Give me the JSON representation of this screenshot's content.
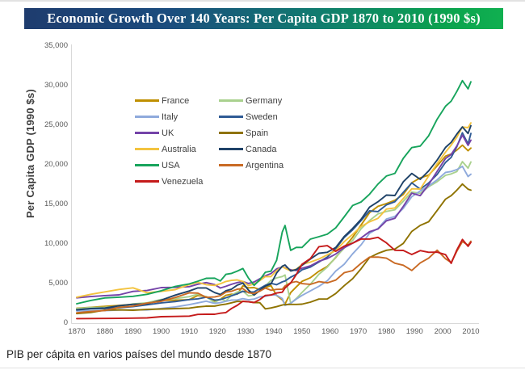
{
  "header": {
    "title": "Economic Growth Over 140 Years: Per Capita GDP 1870 to 2010 (1990 $s)",
    "bg_gradient_left": "#1E3C6E",
    "bg_gradient_right": "#0BA24E",
    "text_color": "#FFFFFF"
  },
  "caption": {
    "text": "PIB per cápita en varios países del mundo desde 1870"
  },
  "chart_data": {
    "type": "line",
    "title": "Economic Growth Over 140 Years: Per Capita GDP 1870 to 2010 (1990 $s)",
    "xlabel": "",
    "ylabel": "Per Capita GDP (1990 $s)",
    "xlim": [
      1870,
      2010
    ],
    "ylim": [
      0,
      35000
    ],
    "grid": false,
    "legend_position": "upper-left, two columns",
    "x_ticks": [
      1870,
      1880,
      1890,
      1900,
      1910,
      1920,
      1930,
      1940,
      1950,
      1960,
      1970,
      1980,
      1990,
      2000,
      2010
    ],
    "y_ticks": [
      {
        "value": 0,
        "label": "0"
      },
      {
        "value": 5000,
        "label": "5,000"
      },
      {
        "value": 10000,
        "label": "10,000"
      },
      {
        "value": 15000,
        "label": "15,000"
      },
      {
        "value": 20000,
        "label": "20,000"
      },
      {
        "value": 25000,
        "label": "25,000"
      },
      {
        "value": 30000,
        "label": "30,000"
      },
      {
        "value": 35000,
        "label": "35,000"
      }
    ],
    "x": [
      1870,
      1875,
      1880,
      1885,
      1890,
      1895,
      1900,
      1905,
      1910,
      1913,
      1916,
      1919,
      1921,
      1923,
      1925,
      1927,
      1929,
      1931,
      1933,
      1935,
      1937,
      1939,
      1941,
      1943,
      1944,
      1946,
      1948,
      1950,
      1953,
      1956,
      1959,
      1962,
      1965,
      1968,
      1971,
      1974,
      1977,
      1980,
      1983,
      1986,
      1989,
      1992,
      1995,
      1998,
      2001,
      2003,
      2005,
      2007,
      2009,
      2010
    ],
    "series": [
      {
        "name": "France",
        "color": "#BF8F00",
        "values": [
          1876,
          1992,
          2120,
          2239,
          2376,
          2498,
          2876,
          2894,
          2965,
          3485,
          3361,
          2811,
          3023,
          3525,
          3653,
          3649,
          4710,
          4455,
          4492,
          4244,
          4487,
          4748,
          3493,
          2953,
          2422,
          3855,
          4580,
          5271,
          5733,
          6555,
          7160,
          8287,
          9577,
          10843,
          12413,
          13954,
          14755,
          15106,
          15525,
          16252,
          17730,
          18350,
          18697,
          19856,
          21092,
          21372,
          21861,
          22480,
          21775,
          22114
        ]
      },
      {
        "name": "Germany",
        "color": "#A9D18E",
        "values": [
          1839,
          1973,
          1991,
          2112,
          2428,
          2571,
          2985,
          3104,
          3348,
          3648,
          3331,
          2586,
          3069,
          2797,
          3532,
          3941,
          4051,
          3441,
          3556,
          4120,
          4685,
          5406,
          5711,
          5890,
          6084,
          2503,
          3113,
          3881,
          4928,
          6177,
          7078,
          8343,
          9467,
          10440,
          11933,
          12957,
          13810,
          14114,
          14318,
          15383,
          16558,
          16397,
          17228,
          17871,
          18677,
          18849,
          19144,
          20395,
          19580,
          20360
        ]
      },
      {
        "name": "Italy",
        "color": "#8FAADC",
        "values": [
          1542,
          1589,
          1581,
          1650,
          1690,
          1668,
          1855,
          2050,
          2332,
          2564,
          2774,
          2493,
          2587,
          2759,
          2921,
          2933,
          3093,
          2947,
          3041,
          3316,
          3392,
          3593,
          3529,
          3103,
          2232,
          2506,
          3043,
          3502,
          4068,
          4658,
          5350,
          6577,
          7434,
          8752,
          9900,
          11346,
          11967,
          13149,
          13475,
          14504,
          15969,
          16697,
          17327,
          18107,
          19040,
          19150,
          19402,
          19804,
          18520,
          18813
        ]
      },
      {
        "name": "Sweden",
        "color": "#2F5B95",
        "values": [
          1662,
          1830,
          1846,
          1946,
          2086,
          2318,
          2561,
          2721,
          2980,
          3073,
          3280,
          2914,
          2966,
          3209,
          3461,
          3699,
          4021,
          3899,
          3944,
          4375,
          4779,
          5029,
          4856,
          5214,
          5327,
          5807,
          6176,
          6739,
          7082,
          7720,
          8346,
          9400,
          10815,
          11784,
          12963,
          14183,
          14088,
          14937,
          15334,
          16516,
          17710,
          16927,
          17700,
          18772,
          20306,
          20937,
          22290,
          24041,
          22630,
          23963
        ]
      },
      {
        "name": "UK",
        "color": "#7443A8",
        "values": [
          3190,
          3357,
          3477,
          3574,
          4009,
          4118,
          4492,
          4520,
          4611,
          4921,
          5123,
          4870,
          4439,
          4657,
          4910,
          5125,
          5255,
          5010,
          5195,
          5599,
          5983,
          6262,
          6856,
          7103,
          6986,
          6745,
          6651,
          6939,
          7239,
          7812,
          8155,
          8730,
          9531,
          10106,
          10768,
          11552,
          11890,
          12931,
          13240,
          14742,
          16414,
          16100,
          17495,
          19177,
          20795,
          21310,
          22374,
          23742,
          22455,
          23113
        ]
      },
      {
        "name": "Spain",
        "color": "#8F7300",
        "values": [
          1207,
          1346,
          1646,
          1688,
          1624,
          1730,
          1786,
          1836,
          1895,
          2056,
          2142,
          2157,
          2306,
          2406,
          2573,
          2747,
          2739,
          2713,
          2606,
          2583,
          1808,
          1915,
          2083,
          2282,
          2345,
          2363,
          2372,
          2397,
          2653,
          3042,
          3050,
          3746,
          4722,
          5609,
          6882,
          8283,
          8812,
          9203,
          9358,
          10075,
          11582,
          12351,
          12807,
          14227,
          15659,
          16100,
          16794,
          17570,
          16921,
          16797
        ]
      },
      {
        "name": "Australia",
        "color": "#F3C33F",
        "values": [
          3273,
          3644,
          3944,
          4257,
          4458,
          3850,
          4013,
          4234,
          4875,
          5157,
          4861,
          4766,
          4982,
          5262,
          5395,
          5456,
          5263,
          4743,
          4938,
          5367,
          5886,
          5877,
          6644,
          7132,
          6925,
          6615,
          6817,
          7412,
          7712,
          8107,
          8623,
          9175,
          10290,
          11217,
          12210,
          12798,
          13231,
          14412,
          14555,
          15746,
          16968,
          16935,
          18581,
          20142,
          21605,
          22488,
          23486,
          24776,
          24698,
          25301
        ]
      },
      {
        "name": "Canada",
        "color": "#1F4268",
        "values": [
          1695,
          1851,
          1911,
          2198,
          2378,
          2437,
          2911,
          3539,
          4066,
          4447,
          4444,
          3854,
          3618,
          4091,
          4301,
          4797,
          5065,
          4174,
          3565,
          4127,
          4683,
          4948,
          6334,
          7194,
          7346,
          6596,
          6765,
          7291,
          8099,
          8823,
          8950,
          9566,
          10934,
          11959,
          13127,
          14653,
          15333,
          16176,
          16122,
          17842,
          18906,
          18160,
          19228,
          20588,
          22198,
          22836,
          23875,
          24789,
          23958,
          24941
        ]
      },
      {
        "name": "USA",
        "color": "#17A45C",
        "values": [
          2445,
          2865,
          3184,
          3274,
          3392,
          3644,
          4091,
          4642,
          4964,
          5301,
          5659,
          5680,
          5323,
          6164,
          6282,
          6576,
          6899,
          5691,
          4777,
          5467,
          6430,
          6561,
          7940,
          11518,
          12333,
          9197,
          9573,
          9561,
          10613,
          10914,
          11230,
          12038,
          13419,
          14862,
          15304,
          16284,
          17567,
          18577,
          18920,
          20821,
          22169,
          22364,
          23662,
          25755,
          27395,
          28039,
          29263,
          30637,
          29587,
          30491
        ]
      },
      {
        "name": "Argentina",
        "color": "#C96A24",
        "values": [
          1311,
          1469,
          1588,
          2001,
          2152,
          2526,
          2756,
          3244,
          3822,
          3797,
          3256,
          3305,
          3472,
          3919,
          4031,
          4284,
          4367,
          3839,
          3746,
          4042,
          4432,
          4148,
          4262,
          4283,
          4691,
          5102,
          5252,
          4987,
          4894,
          5243,
          5087,
          5434,
          6371,
          6636,
          7560,
          8334,
          8351,
          8206,
          7570,
          7318,
          6655,
          7616,
          8204,
          9219,
          8137,
          7666,
          9095,
          10303,
          9850,
          10350
        ]
      },
      {
        "name": "Venezuela",
        "color": "#C51B1B",
        "values": [
          569,
          580,
          593,
          601,
          632,
          660,
          821,
          850,
          883,
          1104,
          1119,
          1126,
          1251,
          1337,
          1860,
          2245,
          2766,
          2695,
          2602,
          2975,
          3496,
          3551,
          3807,
          3910,
          4437,
          5069,
          6155,
          7424,
          8162,
          9650,
          9788,
          9070,
          9724,
          10107,
          10627,
          10625,
          10839,
          10139,
          9200,
          9187,
          8672,
          9163,
          8948,
          8965,
          8650,
          7550,
          9240,
          10570,
          9700,
          10200
        ]
      }
    ]
  }
}
